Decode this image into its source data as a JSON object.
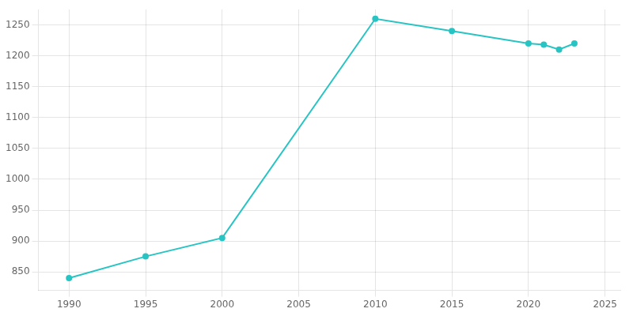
{
  "chart_data": {
    "type": "line",
    "x": [
      1990,
      1995,
      2000,
      2010,
      2015,
      2020,
      2021,
      2022,
      2023
    ],
    "values": [
      840,
      875,
      905,
      1260,
      1240,
      1220,
      1218,
      1210,
      1220
    ],
    "color": "#28C4C4",
    "marker": "circle",
    "xlim": [
      1988,
      2026
    ],
    "ylim": [
      820,
      1275
    ],
    "xticks": [
      1990,
      1995,
      2000,
      2005,
      2010,
      2015,
      2020,
      2025
    ],
    "yticks": [
      850,
      900,
      950,
      1000,
      1050,
      1100,
      1150,
      1200,
      1250
    ],
    "grid": true
  }
}
